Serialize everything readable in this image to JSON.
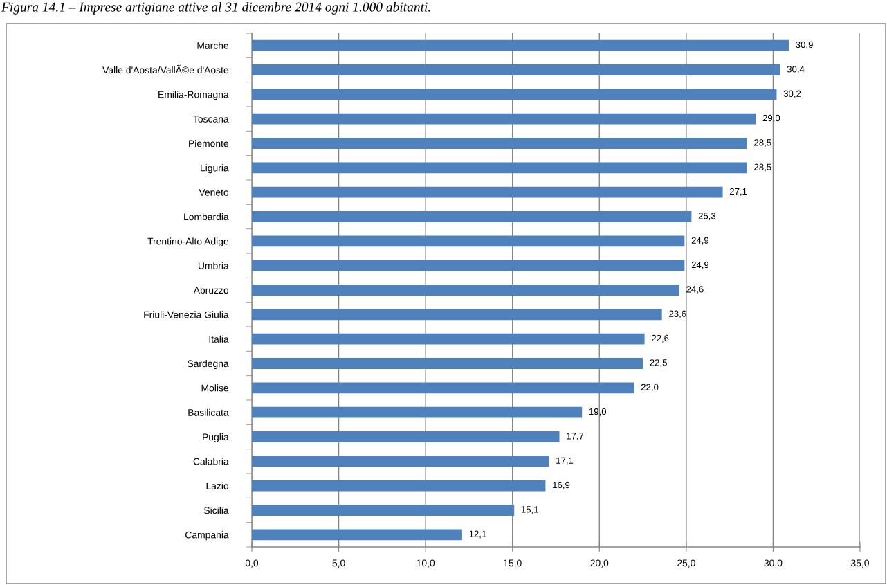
{
  "chart_data": {
    "type": "bar",
    "orientation": "horizontal",
    "title": "Figura 14.1 – Imprese artigiane attive al 31 dicembre 2014 ogni 1.000 abitanti.",
    "categories": [
      "Marche",
      "Valle d'Aosta/VallÃ©e d'Aoste",
      "Emilia-Romagna",
      "Toscana",
      "Piemonte",
      "Liguria",
      "Veneto",
      "Lombardia",
      "Trentino-Alto Adige",
      "Umbria",
      "Abruzzo",
      "Friuli-Venezia Giulia",
      "Italia",
      "Sardegna",
      "Molise",
      "Basilicata",
      "Puglia",
      "Calabria",
      "Lazio",
      "Sicilia",
      "Campania"
    ],
    "values": [
      30.9,
      30.4,
      30.2,
      29.0,
      28.5,
      28.5,
      27.1,
      25.3,
      24.9,
      24.9,
      24.6,
      23.6,
      22.6,
      22.5,
      22.0,
      19.0,
      17.7,
      17.1,
      16.9,
      15.1,
      12.1
    ],
    "value_labels": [
      "30,9",
      "30,4",
      "30,2",
      "29,0",
      "28,5",
      "28,5",
      "27,1",
      "25,3",
      "24,9",
      "24,9",
      "24,6",
      "23,6",
      "22,6",
      "22,5",
      "22,0",
      "19,0",
      "17,7",
      "17,1",
      "16,9",
      "15,1",
      "12,1"
    ],
    "color": "#4f81bd",
    "xlim": [
      0,
      35
    ],
    "xticks": [
      {
        "value": 0,
        "label": "0,0"
      },
      {
        "value": 5,
        "label": "5,0"
      },
      {
        "value": 10,
        "label": "10,0"
      },
      {
        "value": 15,
        "label": "15,0"
      },
      {
        "value": 20,
        "label": "20,0"
      },
      {
        "value": 25,
        "label": "25,0"
      },
      {
        "value": 30,
        "label": "30,0"
      },
      {
        "value": 35,
        "label": "35,0"
      }
    ],
    "grid": "x"
  }
}
